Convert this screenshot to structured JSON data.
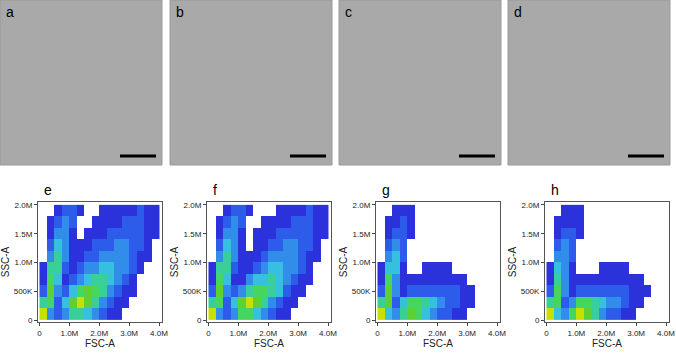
{
  "image_panels": [
    "a",
    "b",
    "c",
    "d"
  ],
  "chart_data": [
    {
      "type": "heatmap",
      "label": "e",
      "x_title": "FSC-A",
      "y_title": "SSC-A",
      "xbins": [
        0,
        250000,
        500000,
        750000,
        1000000,
        1250000,
        1500000,
        1750000,
        2000000,
        2250000,
        2500000,
        2750000,
        3000000,
        3250000,
        3500000,
        3750000,
        4000000
      ],
      "ybins": [
        0,
        200000,
        400000,
        600000,
        800000,
        1000000,
        1200000,
        1400000,
        1600000,
        1800000,
        2000000
      ],
      "z": [
        [
          8,
          3,
          2,
          3,
          5,
          5,
          4,
          3,
          2,
          1,
          1,
          0,
          0,
          0,
          0,
          0
        ],
        [
          5,
          6,
          2,
          4,
          7,
          8,
          7,
          5,
          3,
          2,
          1,
          1,
          0,
          0,
          0,
          0
        ],
        [
          2,
          7,
          3,
          2,
          4,
          6,
          7,
          6,
          5,
          3,
          2,
          1,
          1,
          0,
          0,
          0
        ],
        [
          1,
          6,
          4,
          1,
          2,
          3,
          4,
          5,
          5,
          4,
          3,
          2,
          1,
          0,
          0,
          0
        ],
        [
          1,
          5,
          5,
          2,
          1,
          2,
          3,
          3,
          4,
          4,
          3,
          3,
          2,
          1,
          0,
          0
        ],
        [
          0,
          3,
          5,
          3,
          1,
          1,
          2,
          2,
          3,
          3,
          3,
          3,
          2,
          1,
          1,
          0
        ],
        [
          0,
          2,
          4,
          3,
          1,
          1,
          1,
          2,
          2,
          2,
          3,
          3,
          2,
          2,
          1,
          0
        ],
        [
          0,
          1,
          3,
          3,
          1,
          0,
          1,
          1,
          1,
          2,
          2,
          2,
          2,
          2,
          1,
          1
        ],
        [
          0,
          1,
          2,
          3,
          2,
          0,
          0,
          1,
          1,
          1,
          1,
          2,
          2,
          2,
          1,
          1
        ],
        [
          0,
          0,
          1,
          2,
          2,
          1,
          0,
          0,
          1,
          1,
          1,
          1,
          1,
          2,
          1,
          1
        ]
      ],
      "zlim": [
        0,
        8
      ],
      "xlim": [
        -50000,
        4100000
      ],
      "ylim": [
        -30000,
        2050000
      ],
      "xticks": [
        0,
        {
          "value": 1000000,
          "label": "1.0M"
        },
        {
          "value": 2000000,
          "label": "2.0M"
        },
        {
          "value": 3000000,
          "label": "3.0M"
        },
        {
          "value": 4000000,
          "label": "4.0M"
        }
      ],
      "yticks": [
        0,
        {
          "value": 500000,
          "label": "500K"
        },
        {
          "value": 1000000,
          "label": "1.0M"
        },
        {
          "value": 1500000,
          "label": "1.5M"
        },
        {
          "value": 2000000,
          "label": "2.0M"
        }
      ],
      "grid": false
    },
    {
      "type": "heatmap",
      "label": "f",
      "x_title": "FSC-A",
      "y_title": "SSC-A",
      "xbins": [
        0,
        250000,
        500000,
        750000,
        1000000,
        1250000,
        1500000,
        1750000,
        2000000,
        2250000,
        2500000,
        2750000,
        3000000,
        3250000,
        3500000,
        3750000,
        4000000
      ],
      "ybins": [
        0,
        200000,
        400000,
        600000,
        800000,
        1000000,
        1200000,
        1400000,
        1600000,
        1800000,
        2000000
      ],
      "z": [
        [
          8,
          3,
          2,
          3,
          6,
          6,
          4,
          3,
          2,
          1,
          1,
          0,
          0,
          0,
          0,
          0
        ],
        [
          5,
          6,
          2,
          4,
          7,
          8,
          7,
          5,
          3,
          2,
          1,
          1,
          0,
          0,
          0,
          0
        ],
        [
          2,
          7,
          3,
          2,
          3,
          5,
          6,
          6,
          5,
          4,
          2,
          1,
          1,
          0,
          0,
          0
        ],
        [
          1,
          6,
          4,
          1,
          1,
          3,
          4,
          4,
          5,
          4,
          3,
          2,
          1,
          1,
          0,
          0
        ],
        [
          1,
          5,
          5,
          2,
          1,
          1,
          2,
          3,
          4,
          4,
          3,
          3,
          2,
          1,
          0,
          0
        ],
        [
          0,
          3,
          5,
          3,
          1,
          1,
          1,
          2,
          3,
          3,
          3,
          3,
          2,
          1,
          1,
          0
        ],
        [
          0,
          2,
          4,
          3,
          1,
          0,
          1,
          1,
          2,
          2,
          3,
          3,
          2,
          2,
          1,
          0
        ],
        [
          0,
          1,
          3,
          3,
          1,
          0,
          1,
          1,
          1,
          2,
          2,
          2,
          2,
          2,
          1,
          1
        ],
        [
          0,
          1,
          2,
          3,
          2,
          0,
          0,
          1,
          1,
          1,
          1,
          2,
          2,
          2,
          1,
          1
        ],
        [
          0,
          0,
          1,
          2,
          2,
          1,
          0,
          0,
          0,
          1,
          1,
          1,
          1,
          2,
          1,
          1
        ]
      ],
      "zlim": [
        0,
        8
      ],
      "xlim": [
        -50000,
        4100000
      ],
      "ylim": [
        -30000,
        2050000
      ],
      "xticks": [
        0,
        {
          "value": 1000000,
          "label": "1.0M"
        },
        {
          "value": 2000000,
          "label": "2.0M"
        },
        {
          "value": 3000000,
          "label": "3.0M"
        },
        {
          "value": 4000000,
          "label": "4.0M"
        }
      ],
      "yticks": [
        0,
        {
          "value": 500000,
          "label": "500K"
        },
        {
          "value": 1000000,
          "label": "1.0M"
        },
        {
          "value": 1500000,
          "label": "1.5M"
        },
        {
          "value": 2000000,
          "label": "2.0M"
        }
      ],
      "grid": false
    },
    {
      "type": "heatmap",
      "label": "g",
      "x_title": "FSC-A",
      "y_title": "SSC-A",
      "xbins": [
        0,
        250000,
        500000,
        750000,
        1000000,
        1250000,
        1500000,
        1750000,
        2000000,
        2250000,
        2500000,
        2750000,
        3000000,
        3250000,
        3500000,
        3750000,
        4000000
      ],
      "ybins": [
        0,
        200000,
        400000,
        600000,
        800000,
        1000000,
        1200000,
        1400000,
        1600000,
        1800000,
        2000000
      ],
      "z": [
        [
          8,
          4,
          3,
          5,
          7,
          6,
          4,
          3,
          2,
          2,
          1,
          1,
          0,
          0,
          0,
          0
        ],
        [
          5,
          7,
          2,
          4,
          6,
          6,
          5,
          4,
          3,
          2,
          2,
          1,
          1,
          0,
          0,
          0
        ],
        [
          2,
          7,
          3,
          1,
          2,
          2,
          2,
          2,
          2,
          2,
          2,
          1,
          1,
          0,
          0,
          0
        ],
        [
          1,
          6,
          3,
          1,
          1,
          1,
          1,
          1,
          1,
          1,
          1,
          1,
          0,
          0,
          0,
          0
        ],
        [
          1,
          4,
          4,
          1,
          0,
          0,
          1,
          1,
          1,
          1,
          0,
          0,
          0,
          0,
          0,
          0
        ],
        [
          0,
          3,
          4,
          2,
          0,
          0,
          0,
          0,
          0,
          0,
          0,
          0,
          0,
          0,
          0,
          0
        ],
        [
          0,
          2,
          3,
          2,
          0,
          0,
          0,
          0,
          0,
          0,
          0,
          0,
          0,
          0,
          0,
          0
        ],
        [
          0,
          1,
          2,
          2,
          1,
          0,
          0,
          0,
          0,
          0,
          0,
          0,
          0,
          0,
          0,
          0
        ],
        [
          0,
          1,
          1,
          2,
          1,
          0,
          0,
          0,
          0,
          0,
          0,
          0,
          0,
          0,
          0,
          0
        ],
        [
          0,
          0,
          1,
          1,
          1,
          0,
          0,
          0,
          0,
          0,
          0,
          0,
          0,
          0,
          0,
          0
        ]
      ],
      "zlim": [
        0,
        8
      ],
      "xlim": [
        -50000,
        4100000
      ],
      "ylim": [
        -30000,
        2050000
      ],
      "xticks": [
        0,
        {
          "value": 1000000,
          "label": "1.0M"
        },
        {
          "value": 2000000,
          "label": "2.0M"
        },
        {
          "value": 3000000,
          "label": "3.0M"
        },
        {
          "value": 4000000,
          "label": "4.0M"
        }
      ],
      "yticks": [
        0,
        {
          "value": 500000,
          "label": "500K"
        },
        {
          "value": 1000000,
          "label": "1.0M"
        },
        {
          "value": 1500000,
          "label": "1.5M"
        },
        {
          "value": 2000000,
          "label": "2.0M"
        }
      ],
      "grid": false
    },
    {
      "type": "heatmap",
      "label": "h",
      "x_title": "FSC-A",
      "y_title": "SSC-A",
      "xbins": [
        0,
        250000,
        500000,
        750000,
        1000000,
        1250000,
        1500000,
        1750000,
        2000000,
        2250000,
        2500000,
        2750000,
        3000000,
        3250000,
        3500000,
        3750000,
        4000000
      ],
      "ybins": [
        0,
        200000,
        400000,
        600000,
        800000,
        1000000,
        1200000,
        1400000,
        1600000,
        1800000,
        2000000
      ],
      "z": [
        [
          8,
          4,
          3,
          6,
          8,
          7,
          5,
          3,
          2,
          2,
          1,
          1,
          0,
          0,
          0,
          0
        ],
        [
          5,
          6,
          2,
          3,
          6,
          6,
          5,
          4,
          3,
          3,
          2,
          1,
          1,
          0,
          0,
          0
        ],
        [
          2,
          6,
          3,
          1,
          2,
          2,
          2,
          2,
          2,
          2,
          2,
          1,
          1,
          1,
          0,
          0
        ],
        [
          1,
          5,
          3,
          1,
          1,
          1,
          1,
          1,
          1,
          1,
          1,
          1,
          1,
          0,
          0,
          0
        ],
        [
          1,
          4,
          3,
          1,
          0,
          0,
          0,
          1,
          1,
          1,
          1,
          0,
          0,
          0,
          0,
          0
        ],
        [
          0,
          3,
          3,
          2,
          0,
          0,
          0,
          0,
          0,
          0,
          0,
          0,
          0,
          0,
          0,
          0
        ],
        [
          0,
          2,
          3,
          2,
          0,
          0,
          0,
          0,
          0,
          0,
          0,
          0,
          0,
          0,
          0,
          0
        ],
        [
          0,
          1,
          2,
          2,
          1,
          0,
          0,
          0,
          0,
          0,
          0,
          0,
          0,
          0,
          0,
          0
        ],
        [
          0,
          1,
          1,
          1,
          1,
          0,
          0,
          0,
          0,
          0,
          0,
          0,
          0,
          0,
          0,
          0
        ],
        [
          0,
          0,
          1,
          1,
          1,
          0,
          0,
          0,
          0,
          0,
          0,
          0,
          0,
          0,
          0,
          0
        ]
      ],
      "zlim": [
        0,
        8
      ],
      "xlim": [
        -50000,
        4100000
      ],
      "ylim": [
        -30000,
        2050000
      ],
      "xticks": [
        0,
        {
          "value": 1000000,
          "label": "1.0M"
        },
        {
          "value": 2000000,
          "label": "2.0M"
        },
        {
          "value": 3000000,
          "label": "3.0M"
        },
        {
          "value": 4000000,
          "label": "4.0M"
        }
      ],
      "yticks": [
        0,
        {
          "value": 500000,
          "label": "500K"
        },
        {
          "value": 1000000,
          "label": "1.0M"
        },
        {
          "value": 1500000,
          "label": "1.5M"
        },
        {
          "value": 2000000,
          "label": "2.0M"
        }
      ],
      "grid": false
    }
  ]
}
